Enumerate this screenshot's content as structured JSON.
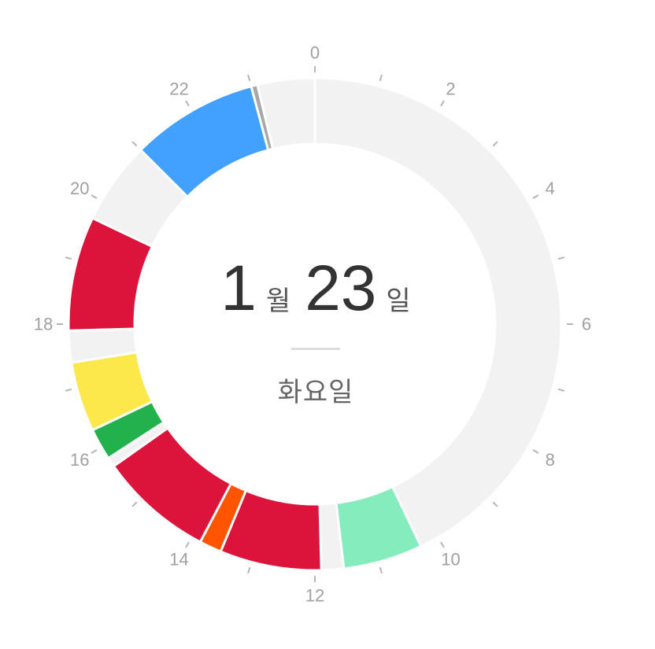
{
  "date": {
    "month": "1",
    "month_unit": "월",
    "day": "23",
    "day_unit": "일",
    "weekday": "화요일"
  },
  "dial": {
    "hour_labels": [
      "0",
      "2",
      "4",
      "6",
      "8",
      "10",
      "12",
      "14",
      "16",
      "18",
      "20",
      "22"
    ],
    "activities": [
      {
        "start_hour": 0.0,
        "end_hour": 10.3,
        "color": "#f2f2f2"
      },
      {
        "start_hour": 10.3,
        "end_hour": 11.55,
        "color": "#85edbd"
      },
      {
        "start_hour": 11.55,
        "end_hour": 11.9,
        "color": "#f2f2f2"
      },
      {
        "start_hour": 11.9,
        "end_hour": 13.5,
        "color": "#dc143c"
      },
      {
        "start_hour": 13.5,
        "end_hour": 13.85,
        "color": "#ff5500"
      },
      {
        "start_hour": 13.85,
        "end_hour": 15.65,
        "color": "#dc143c"
      },
      {
        "start_hour": 15.65,
        "end_hour": 15.8,
        "color": "#f2f2f2"
      },
      {
        "start_hour": 15.8,
        "end_hour": 16.3,
        "color": "#22b14c"
      },
      {
        "start_hour": 16.3,
        "end_hour": 17.4,
        "color": "#fce84a"
      },
      {
        "start_hour": 17.4,
        "end_hour": 17.9,
        "color": "#f2f2f2"
      },
      {
        "start_hour": 17.9,
        "end_hour": 19.7,
        "color": "#dc143c"
      },
      {
        "start_hour": 19.7,
        "end_hour": 21.0,
        "color": "#f2f2f2"
      },
      {
        "start_hour": 21.0,
        "end_hour": 23.0,
        "color": "#42a0ff"
      },
      {
        "start_hour": 23.0,
        "end_hour": 23.1,
        "color": "#a8a8a8"
      },
      {
        "start_hour": 23.1,
        "end_hour": 24.0,
        "color": "#f2f2f2"
      }
    ]
  }
}
